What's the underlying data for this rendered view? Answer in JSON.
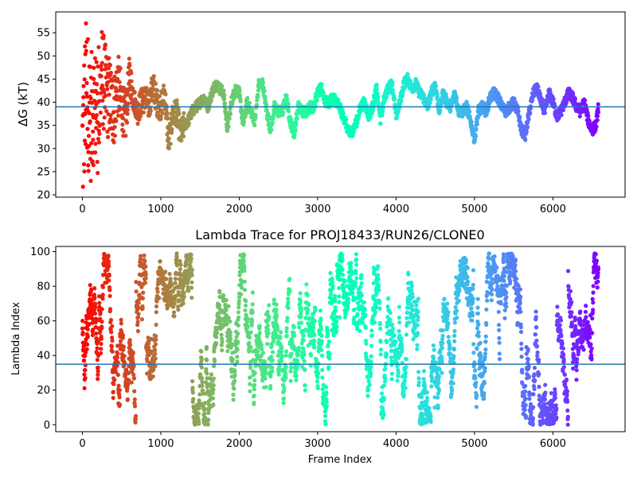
{
  "chart_data": [
    {
      "type": "scatter",
      "title": "",
      "xlabel": "",
      "ylabel": "ΔG (kT)",
      "xlim": [
        -340,
        6920
      ],
      "ylim": [
        19.5,
        59.5
      ],
      "xticks": [
        "0",
        "1000",
        "2000",
        "3000",
        "4000",
        "5000",
        "6000"
      ],
      "yticks": [
        "20",
        "25",
        "30",
        "35",
        "40",
        "45",
        "50",
        "55"
      ],
      "hline": 39,
      "hline_color": "#1f77b4",
      "colormap": "rainbow",
      "color_order": "high frame index = violet, low frame index = red",
      "marker_color_start": "#ff2c16",
      "marker_color_end": "#8000ff",
      "series": [
        {
          "x": [
            0,
            50,
            100,
            150,
            200,
            250,
            300,
            350,
            400,
            450,
            500,
            550,
            600,
            650,
            700,
            750,
            800,
            850,
            900,
            950,
            1000,
            1050,
            1100,
            1150,
            1200,
            1250,
            1300,
            1350,
            1400,
            1450,
            1500,
            1550,
            1600,
            1650,
            1700,
            1750,
            1800,
            1850,
            1900,
            1950,
            2000,
            2050,
            2100,
            2150,
            2200,
            2250,
            2300,
            2350,
            2400,
            2450,
            2500,
            2550,
            2600,
            2650,
            2700,
            2750,
            2800,
            2850,
            2900,
            2950,
            3000,
            3050,
            3100,
            3150,
            3200,
            3250,
            3300,
            3350,
            3400,
            3450,
            3500,
            3550,
            3600,
            3650,
            3700,
            3750,
            3800,
            3850,
            3900,
            3950,
            4000,
            4050,
            4100,
            4150,
            4200,
            4250,
            4300,
            4350,
            4400,
            4450,
            4500,
            4550,
            4600,
            4650,
            4700,
            4750,
            4800,
            4850,
            4900,
            4950,
            5000,
            5050,
            5100,
            5150,
            5200,
            5250,
            5300,
            5350,
            5400,
            5450,
            5500,
            5550,
            5600,
            5650,
            5700,
            5750,
            5800,
            5850,
            5900,
            5950,
            6000,
            6050,
            6100,
            6150,
            6200,
            6250,
            6300,
            6350,
            6400,
            6450,
            6500,
            6550,
            6580
          ],
          "y": [
            30,
            44,
            36,
            40,
            35,
            46,
            42,
            41,
            38,
            44,
            40,
            36,
            46,
            41,
            38,
            40,
            41,
            39,
            44,
            40,
            39,
            42,
            31,
            37,
            38,
            33,
            35,
            36,
            38,
            39,
            40,
            41,
            39,
            42,
            44,
            43,
            42,
            34,
            40,
            43,
            42,
            35,
            40,
            38,
            36,
            44,
            44,
            38,
            34,
            39,
            38,
            38,
            41,
            36,
            33,
            39,
            38,
            38,
            39,
            39,
            42,
            43,
            40,
            40,
            41,
            40,
            38,
            36,
            33,
            34,
            36,
            39,
            40,
            37,
            39,
            43,
            36,
            41,
            43,
            44,
            37,
            40,
            44,
            45,
            43,
            44,
            42,
            41,
            39,
            42,
            44,
            38,
            42,
            40,
            39,
            42,
            38,
            38,
            39,
            36,
            32,
            38,
            39,
            38,
            41,
            42,
            41,
            39,
            38,
            39,
            40,
            38,
            34,
            33,
            38,
            42,
            43,
            40,
            38,
            42,
            40,
            37,
            38,
            40,
            42,
            41,
            39,
            38,
            40,
            36,
            34,
            35,
            39
          ]
        }
      ]
    },
    {
      "type": "scatter",
      "title": "Lambda Trace for PROJ18433/RUN26/CLONE0",
      "xlabel": "Frame Index",
      "ylabel": "Lambda Index",
      "xlim": [
        -340,
        6920
      ],
      "ylim": [
        -4,
        103
      ],
      "xticks": [
        "0",
        "1000",
        "2000",
        "3000",
        "4000",
        "5000",
        "6000"
      ],
      "yticks": [
        "0",
        "20",
        "40",
        "60",
        "80",
        "100"
      ],
      "hline": 35,
      "hline_color": "#1f77b4",
      "colormap": "rainbow",
      "color_order": "high frame index = violet, low frame index = red",
      "marker_color_start": "#ff2c16",
      "marker_color_end": "#8000ff",
      "x_range": [
        0,
        6580
      ],
      "y_range": [
        0,
        99
      ],
      "series": [
        {
          "x": [
            0,
            100,
            200,
            300,
            400,
            500,
            600,
            700,
            800,
            900,
            1000,
            1100,
            1200,
            1300,
            1400,
            1500,
            1600,
            1700,
            1800,
            1900,
            2000,
            2100,
            2200,
            2300,
            2400,
            2500,
            2600,
            2700,
            2800,
            2900,
            3000,
            3100,
            3200,
            3300,
            3400,
            3500,
            3600,
            3700,
            3800,
            3900,
            4000,
            4100,
            4200,
            4300,
            4400,
            4500,
            4600,
            4700,
            4800,
            4900,
            5000,
            5100,
            5200,
            5300,
            5400,
            5500,
            5600,
            5700,
            5800,
            5900,
            6000,
            6100,
            6200,
            6300,
            6400,
            6500,
            6580
          ],
          "y": [
            5,
            72,
            40,
            88,
            20,
            61,
            12,
            95,
            47,
            30,
            79,
            3,
            55,
            90,
            24,
            66,
            8,
            43,
            97,
            35,
            70,
            15,
            52,
            84,
            28,
            62,
            5,
            93,
            38,
            76,
            18,
            49,
            88,
            97,
            4,
            58,
            27,
            81,
            11,
            46,
            69,
            33,
            92,
            21,
            57,
            6,
            75,
            40,
            86,
            14,
            51,
            28,
            63,
            95,
            9,
            37,
            80,
            22,
            56,
            3,
            71,
            44,
            91,
            17,
            60,
            33,
            88
          ]
        }
      ]
    }
  ]
}
